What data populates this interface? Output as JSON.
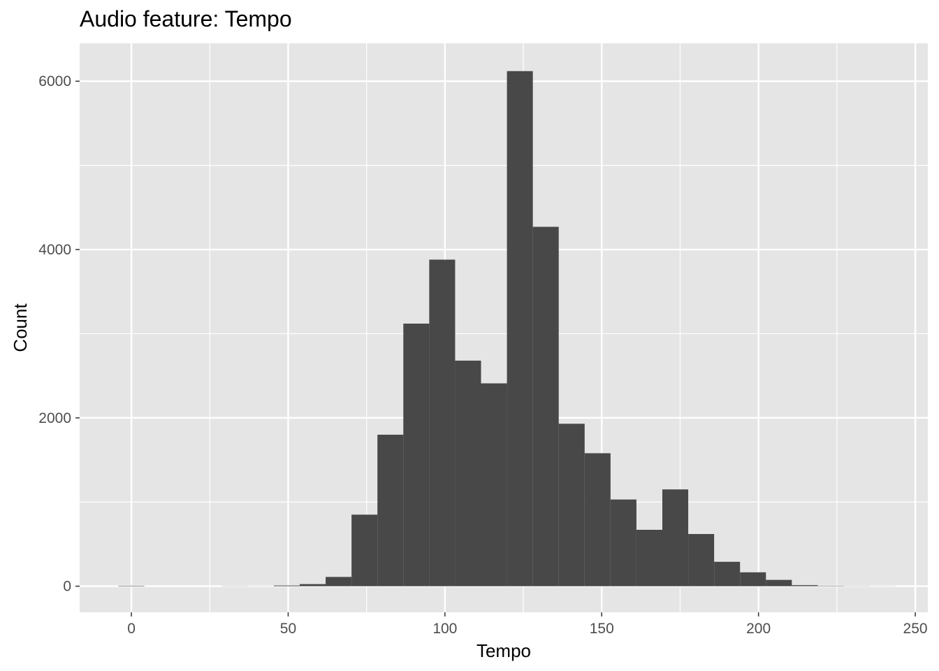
{
  "chart_data": {
    "type": "bar",
    "subtype": "histogram",
    "title": "Audio feature: Tempo",
    "xlabel": "Tempo",
    "ylabel": "Count",
    "xlim": [
      -16.5,
      254
    ],
    "ylim": [
      -310,
      6450
    ],
    "x_ticks": [
      0,
      50,
      100,
      150,
      200,
      250
    ],
    "y_ticks": [
      0,
      2000,
      4000,
      6000
    ],
    "grid": true,
    "legend": "none",
    "bin_width": 8.26,
    "bins": [
      {
        "x0": -4.13,
        "x1": 4.13,
        "count": 5
      },
      {
        "x0": 4.13,
        "x1": 12.39,
        "count": 0
      },
      {
        "x0": 12.39,
        "x1": 20.65,
        "count": 0
      },
      {
        "x0": 20.65,
        "x1": 28.91,
        "count": 0
      },
      {
        "x0": 28.91,
        "x1": 37.17,
        "count": 2
      },
      {
        "x0": 37.17,
        "x1": 45.43,
        "count": 1
      },
      {
        "x0": 45.43,
        "x1": 53.69,
        "count": 8
      },
      {
        "x0": 53.69,
        "x1": 61.95,
        "count": 25
      },
      {
        "x0": 61.95,
        "x1": 70.21,
        "count": 110
      },
      {
        "x0": 70.21,
        "x1": 78.47,
        "count": 850
      },
      {
        "x0": 78.47,
        "x1": 86.73,
        "count": 1800
      },
      {
        "x0": 86.73,
        "x1": 94.99,
        "count": 3120
      },
      {
        "x0": 94.99,
        "x1": 103.25,
        "count": 3880
      },
      {
        "x0": 103.25,
        "x1": 111.51,
        "count": 2680
      },
      {
        "x0": 111.51,
        "x1": 119.77,
        "count": 2410
      },
      {
        "x0": 119.77,
        "x1": 128.03,
        "count": 6120
      },
      {
        "x0": 128.03,
        "x1": 136.29,
        "count": 4270
      },
      {
        "x0": 136.29,
        "x1": 144.55,
        "count": 1930
      },
      {
        "x0": 144.55,
        "x1": 152.81,
        "count": 1580
      },
      {
        "x0": 152.81,
        "x1": 161.07,
        "count": 1030
      },
      {
        "x0": 161.07,
        "x1": 169.33,
        "count": 670
      },
      {
        "x0": 169.33,
        "x1": 177.59,
        "count": 1150
      },
      {
        "x0": 177.59,
        "x1": 185.85,
        "count": 620
      },
      {
        "x0": 185.85,
        "x1": 194.11,
        "count": 290
      },
      {
        "x0": 194.11,
        "x1": 202.37,
        "count": 165
      },
      {
        "x0": 202.37,
        "x1": 210.63,
        "count": 75
      },
      {
        "x0": 210.63,
        "x1": 218.89,
        "count": 12
      },
      {
        "x0": 218.89,
        "x1": 227.15,
        "count": 4
      },
      {
        "x0": 227.15,
        "x1": 235.41,
        "count": 2
      },
      {
        "x0": 235.41,
        "x1": 243.67,
        "count": 1
      }
    ],
    "colors": {
      "bar": "#484848",
      "panel": "#e5e5e5",
      "grid": "#ffffff",
      "tick_label": "#4d4d4d",
      "tick_mark": "#333333"
    }
  }
}
